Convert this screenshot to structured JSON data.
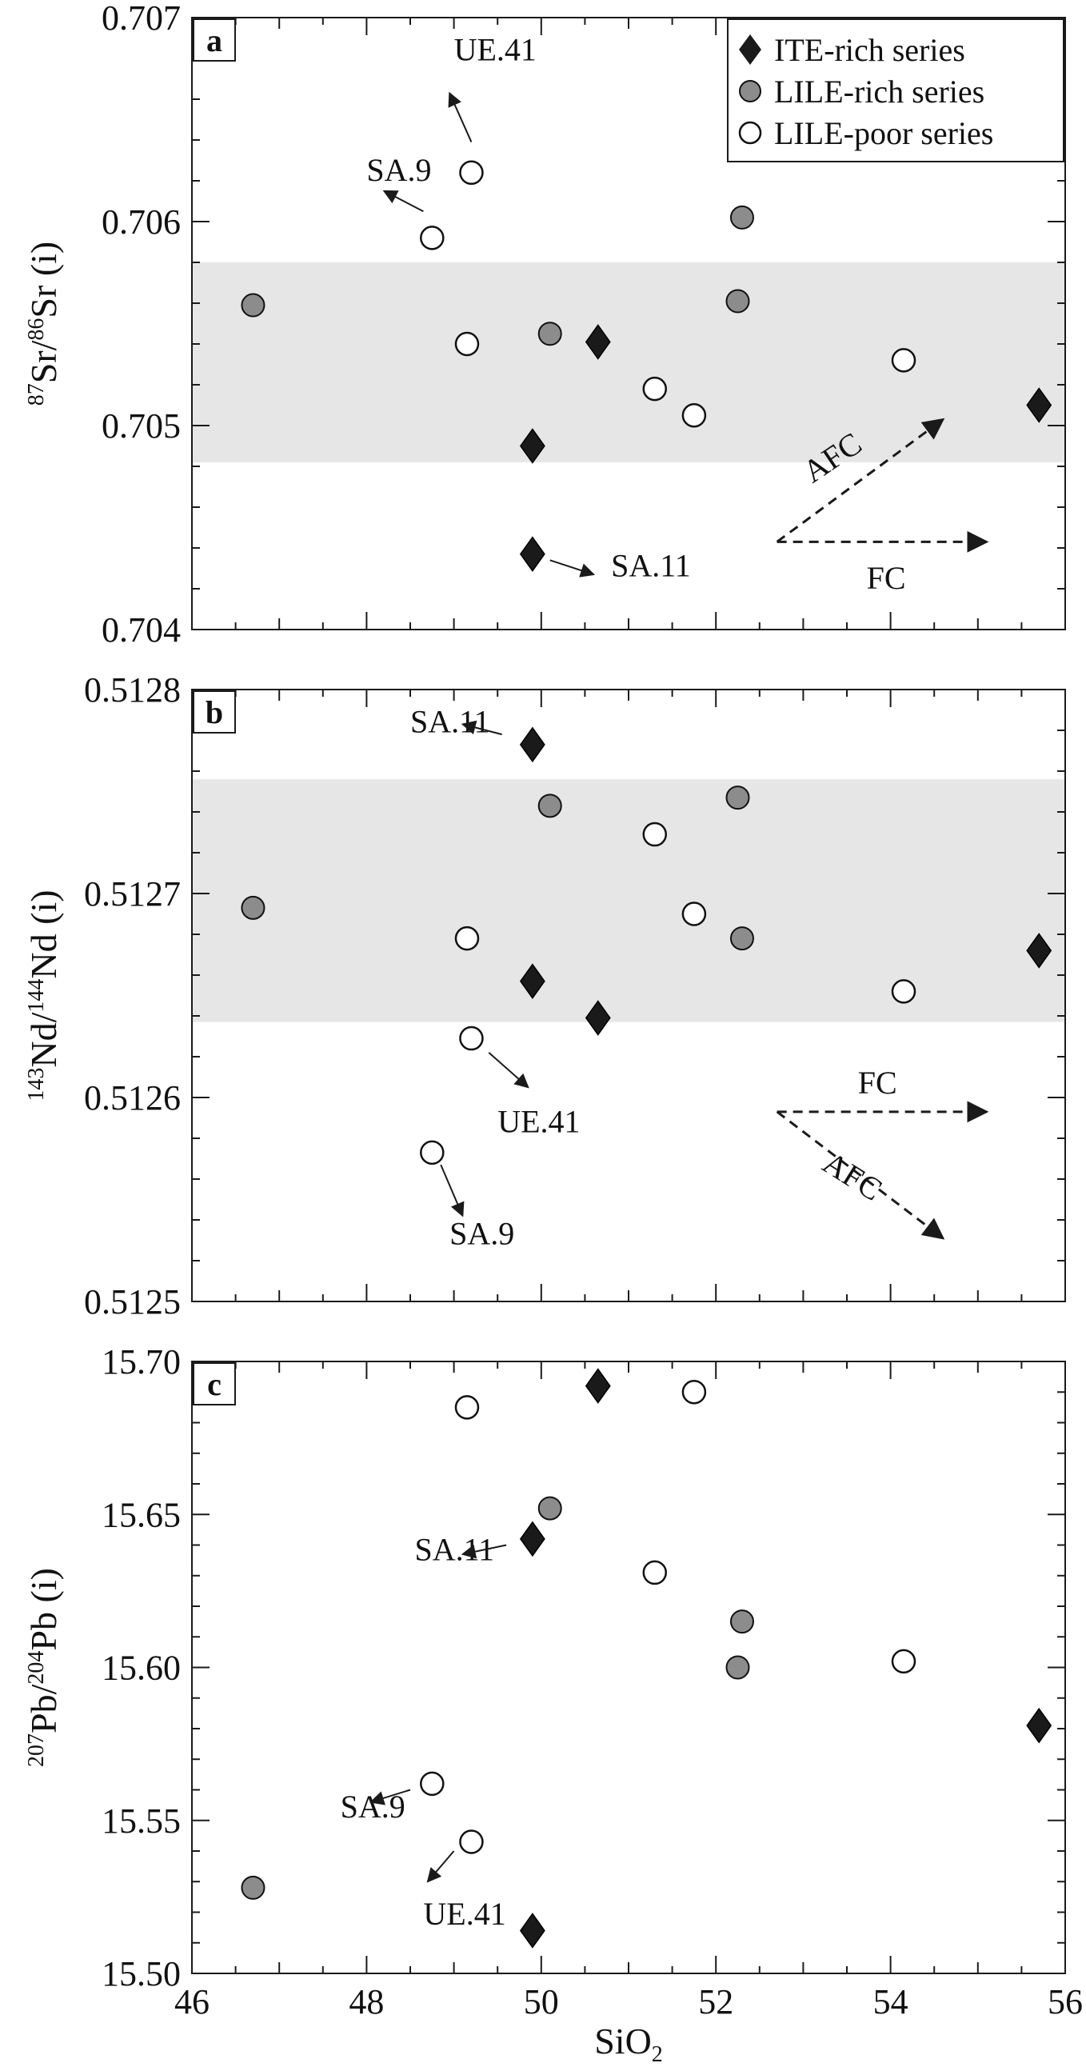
{
  "chart_data": [
    {
      "panel": "a",
      "type": "scatter",
      "ylabel": "87Sr/86Sr (i)",
      "ylim": [
        0.704,
        0.707
      ],
      "yticks": [
        "0.704",
        "0.705",
        "0.706",
        "0.707"
      ],
      "band": [
        0.70482,
        0.7058
      ],
      "series": [
        {
          "name": "ITE-rich series",
          "marker": "diamond",
          "color": "#1a1a1a",
          "points": [
            {
              "x": 49.9,
              "y": 0.7049
            },
            {
              "x": 49.9,
              "y": 0.70437
            },
            {
              "x": 50.65,
              "y": 0.70541
            },
            {
              "x": 55.7,
              "y": 0.7051
            }
          ]
        },
        {
          "name": "LILE-rich series",
          "marker": "circle-filled",
          "color": "#8c8c8c",
          "points": [
            {
              "x": 46.7,
              "y": 0.70559
            },
            {
              "x": 50.1,
              "y": 0.70545
            },
            {
              "x": 52.25,
              "y": 0.70561
            },
            {
              "x": 52.3,
              "y": 0.70602
            }
          ]
        },
        {
          "name": "LILE-poor series",
          "marker": "circle-open",
          "color": "#ffffff",
          "points": [
            {
              "x": 48.75,
              "y": 0.70592
            },
            {
              "x": 49.2,
              "y": 0.70624
            },
            {
              "x": 49.15,
              "y": 0.7054
            },
            {
              "x": 51.3,
              "y": 0.70518
            },
            {
              "x": 51.75,
              "y": 0.70505
            },
            {
              "x": 54.15,
              "y": 0.70532
            }
          ]
        }
      ],
      "annotations": [
        {
          "text": "UE.41",
          "x": 49.0,
          "y": 0.70679,
          "ax1": 49.2,
          "ay1": 0.70639,
          "ax2": 48.95,
          "ay2": 0.70663
        },
        {
          "text": "SA.9",
          "x": 48.0,
          "y": 0.7062,
          "ax1": 48.65,
          "ay1": 0.70605,
          "ax2": 48.2,
          "ay2": 0.70615
        },
        {
          "text": "SA.11",
          "x": 50.8,
          "y": 0.70426,
          "ax1": 50.1,
          "ay1": 0.70434,
          "ax2": 50.6,
          "ay2": 0.70427
        }
      ],
      "vectors": [
        {
          "label": "AFC",
          "from": [
            52.7,
            0.70443
          ],
          "to": [
            54.6,
            0.70503
          ],
          "label_at": [
            53.4,
            0.7048
          ],
          "label_angle": -34
        },
        {
          "label": "FC",
          "from": [
            52.7,
            0.70443
          ],
          "to": [
            55.1,
            0.70443
          ],
          "label_at": [
            53.95,
            0.7042
          ],
          "label_angle": 0
        }
      ]
    },
    {
      "panel": "b",
      "type": "scatter",
      "ylabel": "143Nd/144Nd (i)",
      "ylim": [
        0.5125,
        0.5128
      ],
      "yticks": [
        "0.5125",
        "0.5126",
        "0.5127",
        "0.5128"
      ],
      "band": [
        0.512637,
        0.512756
      ],
      "series": [
        {
          "name": "ITE-rich series",
          "marker": "diamond",
          "color": "#1a1a1a",
          "points": [
            {
              "x": 49.9,
              "y": 0.512773
            },
            {
              "x": 49.9,
              "y": 0.512657
            },
            {
              "x": 50.65,
              "y": 0.512639
            },
            {
              "x": 55.7,
              "y": 0.512672
            }
          ]
        },
        {
          "name": "LILE-rich series",
          "marker": "circle-filled",
          "color": "#8c8c8c",
          "points": [
            {
              "x": 46.7,
              "y": 0.512693
            },
            {
              "x": 50.1,
              "y": 0.512743
            },
            {
              "x": 52.25,
              "y": 0.512747
            },
            {
              "x": 52.3,
              "y": 0.512678
            }
          ]
        },
        {
          "name": "LILE-poor series",
          "marker": "circle-open",
          "color": "#ffffff",
          "points": [
            {
              "x": 49.15,
              "y": 0.512678
            },
            {
              "x": 49.2,
              "y": 0.512629
            },
            {
              "x": 48.75,
              "y": 0.512573
            },
            {
              "x": 51.3,
              "y": 0.512729
            },
            {
              "x": 51.75,
              "y": 0.51269
            },
            {
              "x": 54.15,
              "y": 0.512652
            }
          ]
        }
      ],
      "annotations": [
        {
          "text": "SA.11",
          "x": 48.5,
          "y": 0.512779,
          "ax1": 49.55,
          "ay1": 0.512778,
          "ax2": 49.1,
          "ay2": 0.512783
        },
        {
          "text": "UE.41",
          "x": 49.5,
          "y": 0.512583,
          "ax1": 49.4,
          "ay1": 0.512622,
          "ax2": 49.85,
          "ay2": 0.512605
        },
        {
          "text": "SA.9",
          "x": 48.95,
          "y": 0.512528,
          "ax1": 48.85,
          "ay1": 0.512567,
          "ax2": 49.1,
          "ay2": 0.512542
        }
      ],
      "vectors": [
        {
          "label": "FC",
          "from": [
            52.7,
            0.512593
          ],
          "to": [
            55.1,
            0.512593
          ],
          "label_at": [
            53.85,
            0.512602
          ],
          "label_angle": 0
        },
        {
          "label": "AFC",
          "from": [
            52.7,
            0.512593
          ],
          "to": [
            54.6,
            0.512531
          ],
          "label_at": [
            53.5,
            0.512557
          ],
          "label_angle": 32
        }
      ]
    },
    {
      "panel": "c",
      "type": "scatter",
      "xlabel": "SiO2",
      "ylabel": "207Pb/204Pb (i)",
      "xlim": [
        46,
        56
      ],
      "xticks": [
        "46",
        "48",
        "50",
        "52",
        "54",
        "56"
      ],
      "ylim": [
        15.5,
        15.7
      ],
      "yticks": [
        "15.50",
        "15.55",
        "15.60",
        "15.65",
        "15.70"
      ],
      "series": [
        {
          "name": "ITE-rich series",
          "marker": "diamond",
          "color": "#1a1a1a",
          "points": [
            {
              "x": 50.65,
              "y": 15.692
            },
            {
              "x": 49.9,
              "y": 15.642
            },
            {
              "x": 55.7,
              "y": 15.581
            },
            {
              "x": 49.9,
              "y": 15.514
            }
          ]
        },
        {
          "name": "LILE-rich series",
          "marker": "circle-filled",
          "color": "#8c8c8c",
          "points": [
            {
              "x": 50.1,
              "y": 15.652
            },
            {
              "x": 52.3,
              "y": 15.615
            },
            {
              "x": 52.25,
              "y": 15.6
            },
            {
              "x": 46.7,
              "y": 15.528
            }
          ]
        },
        {
          "name": "LILE-poor series",
          "marker": "circle-open",
          "color": "#ffffff",
          "points": [
            {
              "x": 49.15,
              "y": 15.685
            },
            {
              "x": 51.75,
              "y": 15.69
            },
            {
              "x": 51.3,
              "y": 15.631
            },
            {
              "x": 54.15,
              "y": 15.602
            },
            {
              "x": 48.75,
              "y": 15.562
            },
            {
              "x": 49.2,
              "y": 15.543
            }
          ]
        }
      ],
      "annotations": [
        {
          "text": "SA.11",
          "x": 48.55,
          "y": 15.635,
          "ax1": 49.6,
          "ay1": 15.64,
          "ax2": 49.1,
          "ay2": 15.637
        },
        {
          "text": "SA.9",
          "x": 47.7,
          "y": 15.551,
          "ax1": 48.5,
          "ay1": 15.56,
          "ax2": 48.05,
          "ay2": 15.556
        },
        {
          "text": "UE.41",
          "x": 48.65,
          "y": 15.516,
          "ax1": 49.0,
          "ay1": 15.54,
          "ax2": 48.7,
          "ay2": 15.53
        }
      ],
      "vectors": []
    }
  ],
  "legend": {
    "placement": "top-right",
    "entries": [
      {
        "label": "ITE-rich series",
        "marker": "diamond"
      },
      {
        "label": "LILE-rich series",
        "marker": "circle-filled"
      },
      {
        "label": "LILE-poor series",
        "marker": "circle-open"
      }
    ]
  },
  "colors": {
    "band": "#e6e6e6",
    "frame": "#1a1a1a",
    "diamond": "#1a1a1a",
    "filled_circle": "#8c8c8c",
    "open_circle": "#ffffff"
  }
}
